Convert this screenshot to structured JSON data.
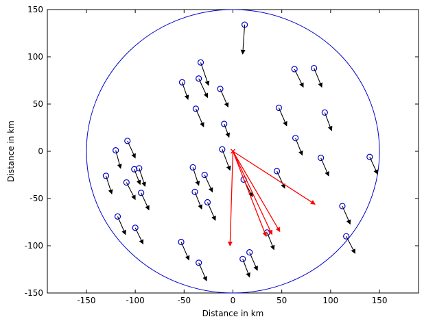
{
  "chart_data": {
    "type": "scatter",
    "xlabel": "Distance in km",
    "ylabel": "Distance in km",
    "xlim": [
      -190,
      190
    ],
    "ylim": [
      -150,
      150
    ],
    "xticks": [
      -150,
      -100,
      -50,
      0,
      50,
      100,
      150
    ],
    "yticks": [
      -150,
      -100,
      -50,
      0,
      50,
      100,
      150
    ],
    "grid": false,
    "boundary_circle": {
      "center": [
        0,
        0
      ],
      "radius": 150,
      "color": "#0000cc"
    },
    "origin_marker": {
      "x": 0,
      "y": 0,
      "symbol": "x",
      "color": "#ff0000"
    },
    "red_rays": {
      "color": "#ff0000",
      "from": [
        0,
        0
      ],
      "ends": [
        [
          -3,
          -100
        ],
        [
          34,
          -90
        ],
        [
          40,
          -88
        ],
        [
          48,
          -85
        ],
        [
          84,
          -56
        ]
      ]
    },
    "nodes": {
      "color": "#0000cc",
      "arrow_color": "#000000",
      "points": [
        [
          12,
          134,
          10,
          103
        ],
        [
          -33,
          94,
          -25,
          70
        ],
        [
          -35,
          77,
          -26,
          57
        ],
        [
          -52,
          73,
          -46,
          55
        ],
        [
          -13,
          66,
          -5,
          47
        ],
        [
          -38,
          45,
          -30,
          26
        ],
        [
          -9,
          29,
          -4,
          15
        ],
        [
          -11,
          2,
          -3,
          -20
        ],
        [
          -120,
          1,
          -115,
          -18
        ],
        [
          -108,
          11,
          -100,
          -7
        ],
        [
          -101,
          -19,
          -95,
          -35
        ],
        [
          -96,
          -18,
          -90,
          -37
        ],
        [
          -130,
          -26,
          -124,
          -45
        ],
        [
          -109,
          -33,
          -100,
          -51
        ],
        [
          -94,
          -44,
          -86,
          -62
        ],
        [
          -118,
          -69,
          -110,
          -88
        ],
        [
          -100,
          -81,
          -92,
          -98
        ],
        [
          -41,
          -17,
          -35,
          -36
        ],
        [
          -29,
          -25,
          -21,
          -43
        ],
        [
          -39,
          -43,
          -32,
          -61
        ],
        [
          -26,
          -54,
          -18,
          -73
        ],
        [
          -53,
          -96,
          -45,
          -115
        ],
        [
          -35,
          -118,
          -27,
          -137
        ],
        [
          11,
          -30,
          20,
          -48
        ],
        [
          35,
          -86,
          42,
          -104
        ],
        [
          10,
          -114,
          17,
          -133
        ],
        [
          17,
          -107,
          25,
          -126
        ],
        [
          45,
          -21,
          53,
          -39
        ],
        [
          63,
          87,
          72,
          68
        ],
        [
          83,
          88,
          91,
          68
        ],
        [
          47,
          46,
          55,
          27
        ],
        [
          94,
          41,
          101,
          22
        ],
        [
          64,
          14,
          71,
          -4
        ],
        [
          90,
          -7,
          98,
          -26
        ],
        [
          112,
          -58,
          120,
          -77
        ],
        [
          116,
          -90,
          125,
          -108
        ],
        [
          140,
          -6,
          148,
          -24
        ]
      ]
    }
  }
}
